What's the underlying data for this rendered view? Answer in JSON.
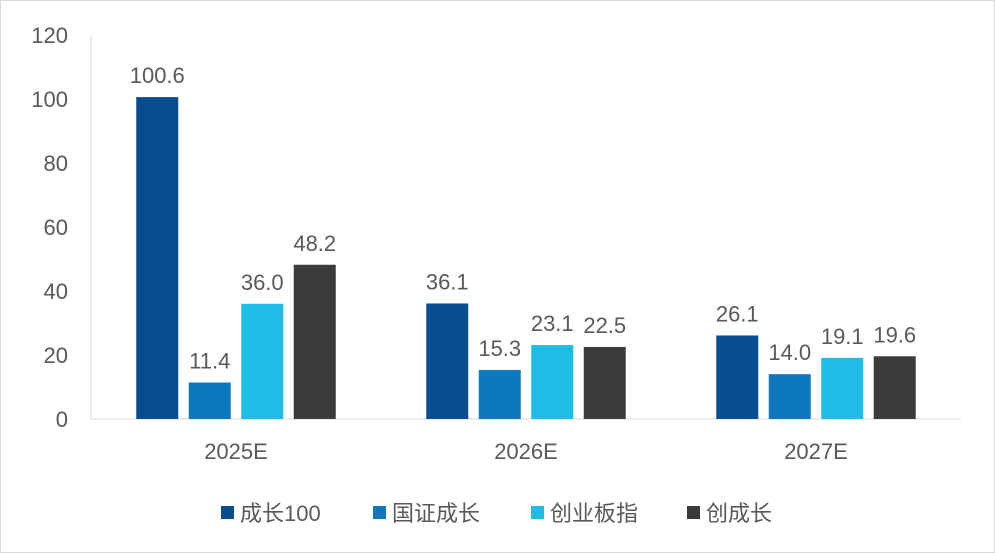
{
  "chart_data": {
    "type": "bar",
    "categories": [
      "2025E",
      "2026E",
      "2027E"
    ],
    "series": [
      {
        "name": "成长100",
        "values": [
          100.6,
          36.1,
          26.1
        ],
        "labels": [
          "100.6",
          "36.1",
          "26.1"
        ],
        "color": "#084D8E"
      },
      {
        "name": "国证成长",
        "values": [
          11.4,
          15.3,
          14.0
        ],
        "labels": [
          "11.4",
          "15.3",
          "14.0"
        ],
        "color": "#0E78BC"
      },
      {
        "name": "创业板指",
        "values": [
          36.0,
          23.1,
          19.1
        ],
        "labels": [
          "36.0",
          "23.1",
          "19.1"
        ],
        "color": "#1FBDE6"
      },
      {
        "name": "创成长",
        "values": [
          48.2,
          22.5,
          19.6
        ],
        "labels": [
          "48.2",
          "22.5",
          "19.6"
        ],
        "color": "#3B3B3B"
      }
    ],
    "yticks": [
      "0",
      "20",
      "40",
      "60",
      "80",
      "100",
      "120"
    ],
    "ylim": [
      0,
      120
    ],
    "grid": false,
    "legend_position": "bottom"
  }
}
